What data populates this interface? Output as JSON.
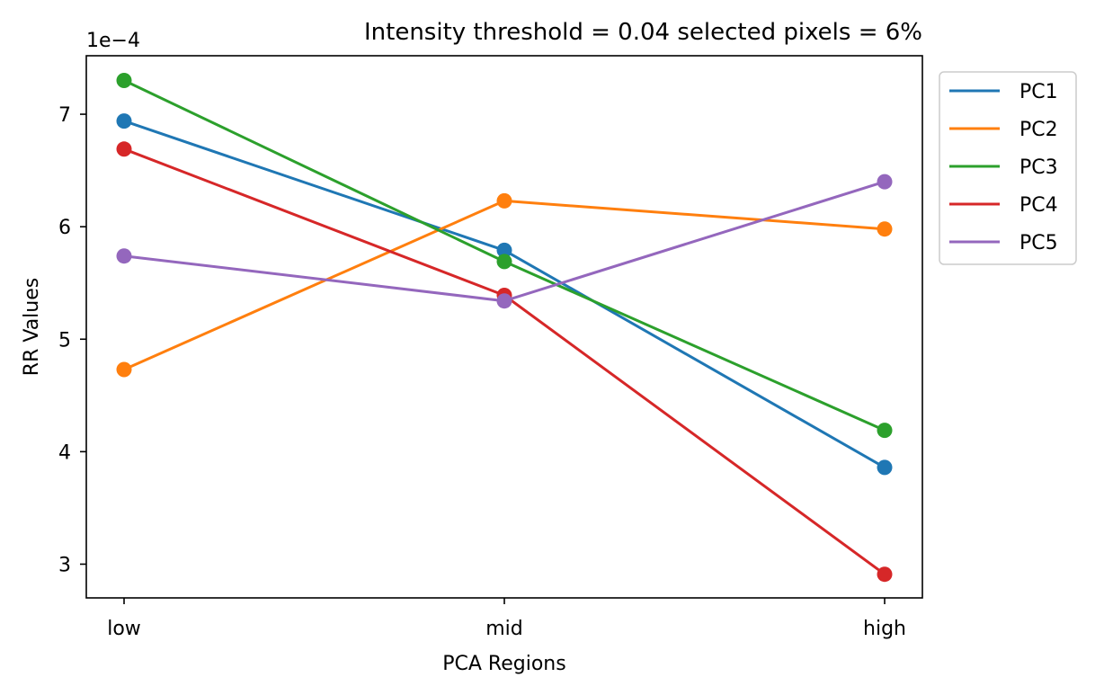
{
  "chart_data": {
    "type": "line",
    "title": "Intensity threshold = 0.04 selected pixels = 6%",
    "xlabel": "PCA Regions",
    "ylabel": "RR Values",
    "y_offset_label": "1e−4",
    "categories": [
      "low",
      "mid",
      "high"
    ],
    "yticks": [
      3,
      4,
      5,
      6,
      7
    ],
    "ylim": [
      2.7,
      7.52
    ],
    "grid": false,
    "legend_placement": "outside upper-right",
    "markers": true,
    "series": [
      {
        "name": "PC1",
        "color": "#1f77b4",
        "values": [
          6.94,
          5.79,
          3.86
        ]
      },
      {
        "name": "PC2",
        "color": "#ff7f0e",
        "values": [
          4.73,
          6.23,
          5.98
        ]
      },
      {
        "name": "PC3",
        "color": "#2ca02c",
        "values": [
          7.3,
          5.69,
          4.19
        ]
      },
      {
        "name": "PC4",
        "color": "#d62728",
        "values": [
          6.69,
          5.39,
          2.91
        ]
      },
      {
        "name": "PC5",
        "color": "#9467bd",
        "values": [
          5.74,
          5.34,
          6.4
        ]
      }
    ]
  }
}
